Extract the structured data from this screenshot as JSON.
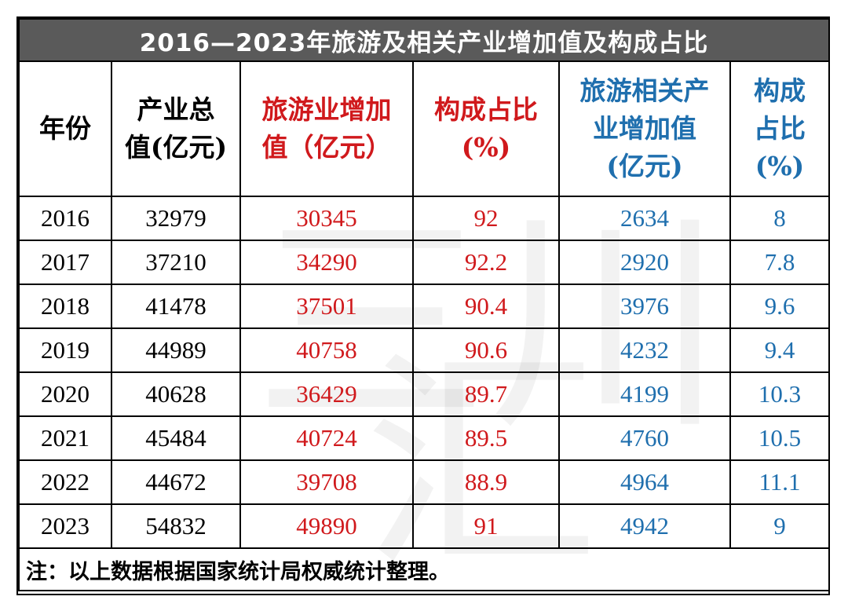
{
  "title": "2016—2023年旅游及相关产业增加值及构成占比",
  "headers": {
    "year": [
      "年份"
    ],
    "total": [
      "产业总",
      "值(亿元)"
    ],
    "tourism_value": [
      "旅游业增加",
      "值（亿元）"
    ],
    "tourism_share": [
      "构成占比",
      "(%)"
    ],
    "related_value": [
      "旅游相关产",
      "业增加值",
      "(亿元)"
    ],
    "related_share": [
      "构成",
      "占比",
      "(%)"
    ]
  },
  "rows": [
    {
      "year": "2016",
      "total": "32979",
      "tourism_value": "30345",
      "tourism_share": "92",
      "related_value": "2634",
      "related_share": "8"
    },
    {
      "year": "2017",
      "total": "37210",
      "tourism_value": "34290",
      "tourism_share": "92.2",
      "related_value": "2920",
      "related_share": "7.8"
    },
    {
      "year": "2018",
      "total": "41478",
      "tourism_value": "37501",
      "tourism_share": "90.4",
      "related_value": "3976",
      "related_share": "9.6"
    },
    {
      "year": "2019",
      "total": "44989",
      "tourism_value": "40758",
      "tourism_share": "90.6",
      "related_value": "4232",
      "related_share": "9.4"
    },
    {
      "year": "2020",
      "total": "40628",
      "tourism_value": "36429",
      "tourism_share": "89.7",
      "related_value": "4199",
      "related_share": "10.3"
    },
    {
      "year": "2021",
      "total": "45484",
      "tourism_value": "40724",
      "tourism_share": "89.5",
      "related_value": "4760",
      "related_share": "10.5"
    },
    {
      "year": "2022",
      "total": "44672",
      "tourism_value": "39708",
      "tourism_share": "88.9",
      "related_value": "4964",
      "related_share": "11.1"
    },
    {
      "year": "2023",
      "total": "54832",
      "tourism_value": "49890",
      "tourism_share": "91",
      "related_value": "4942",
      "related_share": "9"
    }
  ],
  "note": "注：以上数据根据国家统计局权威统计整理。",
  "colors": {
    "title_bg": "#5a5a5a",
    "title_text": "#ffffff",
    "tourism_columns": "#d0191c",
    "related_columns": "#1f6fae",
    "base_text": "#000000"
  }
}
